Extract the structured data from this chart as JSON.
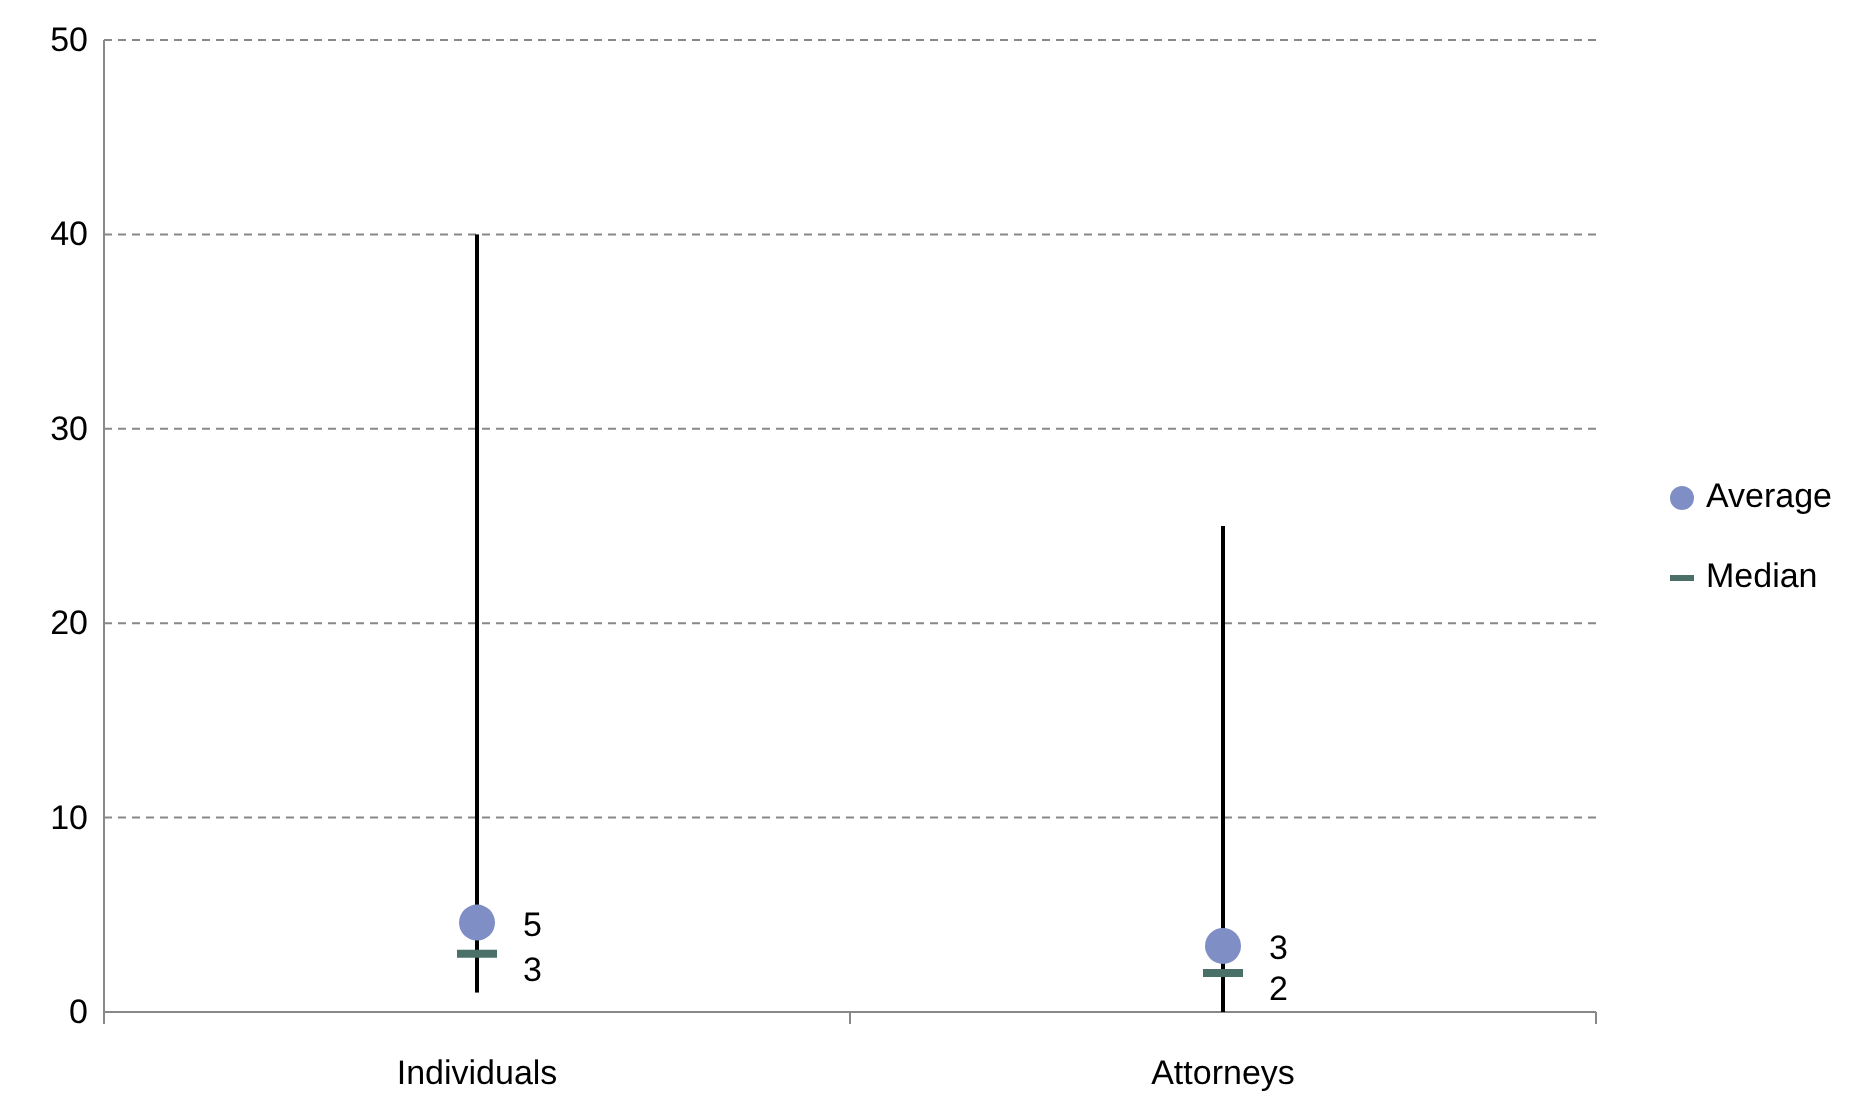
{
  "chart_data": {
    "type": "bar",
    "categories": [
      "Individuals",
      "Attorneys"
    ],
    "ylim": [
      0,
      50
    ],
    "yticks": [
      0,
      10,
      20,
      30,
      40,
      50
    ],
    "grid": "y",
    "legend": "right",
    "series": [
      {
        "color": "#000000",
        "base": [
          1,
          0
        ],
        "values": [
          39,
          25
        ]
      },
      {
        "name": "Average",
        "type": "scatter",
        "color": "#7f8ec4",
        "marker": "circle",
        "values": [
          4.6,
          3.4
        ],
        "value_labels": [
          "5",
          "3"
        ]
      },
      {
        "name": "Median",
        "type": "scatter",
        "color": "#4a7068",
        "values": [
          3,
          2
        ],
        "value_labels": [
          "3",
          "2"
        ]
      }
    ]
  }
}
